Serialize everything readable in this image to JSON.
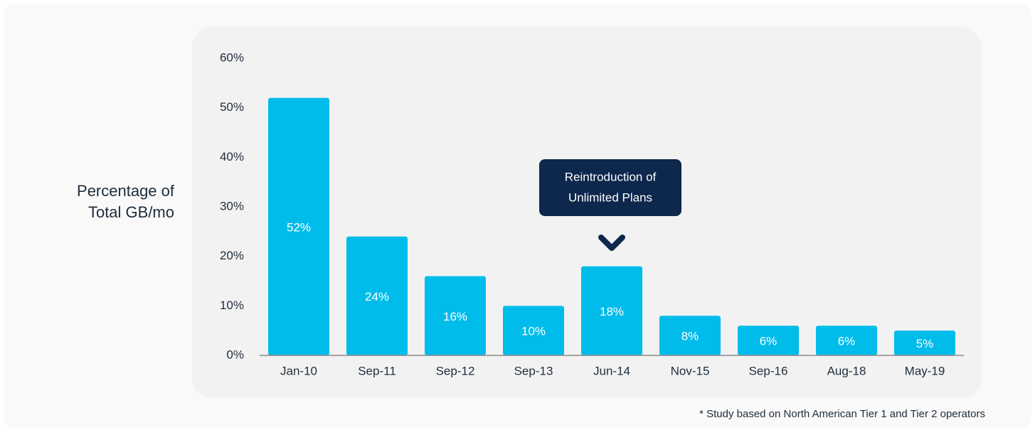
{
  "chart_data": {
    "type": "bar",
    "y_axis_label": [
      "Percentage of",
      "Total GB/mo"
    ],
    "categories": [
      "Jan-10",
      "Sep-11",
      "Sep-12",
      "Sep-13",
      "Jun-14",
      "Nov-15",
      "Sep-16",
      "Aug-18",
      "May-19"
    ],
    "values": [
      52,
      24,
      16,
      10,
      18,
      8,
      6,
      6,
      5
    ],
    "value_labels": [
      "52%",
      "24%",
      "16%",
      "10%",
      "18%",
      "8%",
      "6%",
      "6%",
      "5%"
    ],
    "color": "#00bceb",
    "ylim": [
      0,
      60
    ],
    "yticks": [
      {
        "value": 0,
        "label": "0%"
      },
      {
        "value": 10,
        "label": "10%"
      },
      {
        "value": 20,
        "label": "20%"
      },
      {
        "value": 30,
        "label": "30%"
      },
      {
        "value": 40,
        "label": "40%"
      },
      {
        "value": 50,
        "label": "50%"
      },
      {
        "value": 60,
        "label": "60%"
      }
    ],
    "grid": false,
    "annotation": [
      "Reintroduction of",
      "Unlimited Plans"
    ],
    "footnote": "* Study based on North American Tier 1 and Tier 2 operators"
  }
}
